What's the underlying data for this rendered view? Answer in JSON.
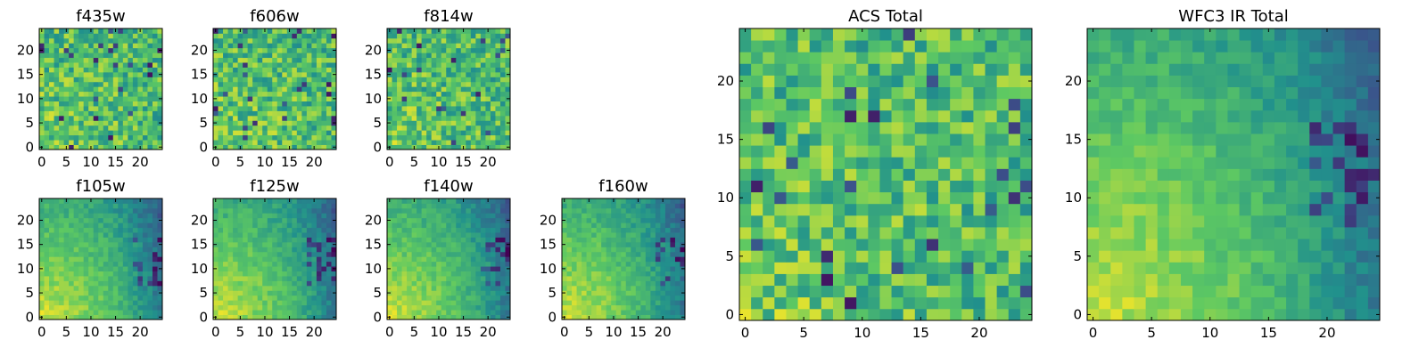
{
  "figure": {
    "colormap": "viridis",
    "colormap_stops": [
      "#440154",
      "#3b528b",
      "#21918c",
      "#5ec962",
      "#fde725"
    ]
  },
  "chart_data": [
    {
      "type": "heatmap",
      "title": "f435w",
      "pattern": "noisy-uniform",
      "grid_size": [
        25,
        25
      ],
      "xlim": [
        -0.5,
        24.5
      ],
      "ylim": [
        -0.5,
        24.5
      ],
      "xticks": [
        0,
        5,
        10,
        15,
        20
      ],
      "yticks": [
        0,
        5,
        10,
        15,
        20
      ],
      "xtick_labels": [
        "0",
        "5",
        "10",
        "15",
        "20"
      ],
      "ytick_labels": [
        "0",
        "5",
        "10",
        "15",
        "20"
      ],
      "value_range": [
        0,
        1
      ]
    },
    {
      "type": "heatmap",
      "title": "f606w",
      "pattern": "noisy-uniform",
      "grid_size": [
        25,
        25
      ],
      "xlim": [
        -0.5,
        24.5
      ],
      "ylim": [
        -0.5,
        24.5
      ],
      "xticks": [
        0,
        5,
        10,
        15,
        20
      ],
      "yticks": [
        0,
        5,
        10,
        15,
        20
      ],
      "xtick_labels": [
        "0",
        "5",
        "10",
        "15",
        "20"
      ],
      "ytick_labels": [
        "0",
        "5",
        "10",
        "15",
        "20"
      ],
      "value_range": [
        0,
        1
      ]
    },
    {
      "type": "heatmap",
      "title": "f814w",
      "pattern": "noisy-uniform",
      "grid_size": [
        25,
        25
      ],
      "xlim": [
        -0.5,
        24.5
      ],
      "ylim": [
        -0.5,
        24.5
      ],
      "xticks": [
        0,
        5,
        10,
        15,
        20
      ],
      "yticks": [
        0,
        5,
        10,
        15,
        20
      ],
      "xtick_labels": [
        "0",
        "5",
        "10",
        "15",
        "20"
      ],
      "ytick_labels": [
        "0",
        "5",
        "10",
        "15",
        "20"
      ],
      "value_range": [
        0,
        1
      ]
    },
    {
      "type": "heatmap",
      "title": "f105w",
      "pattern": "gradient-bright-lower-left-dark-right",
      "grid_size": [
        25,
        25
      ],
      "xlim": [
        -0.5,
        24.5
      ],
      "ylim": [
        -0.5,
        24.5
      ],
      "xticks": [
        0,
        5,
        10,
        15,
        20
      ],
      "yticks": [
        0,
        5,
        10,
        15,
        20
      ],
      "xtick_labels": [
        "0",
        "5",
        "10",
        "15",
        "20"
      ],
      "ytick_labels": [
        "0",
        "5",
        "10",
        "15",
        "20"
      ],
      "value_range": [
        0,
        1
      ]
    },
    {
      "type": "heatmap",
      "title": "f125w",
      "pattern": "gradient-bright-lower-left-dark-right",
      "grid_size": [
        25,
        25
      ],
      "xlim": [
        -0.5,
        24.5
      ],
      "ylim": [
        -0.5,
        24.5
      ],
      "xticks": [
        0,
        5,
        10,
        15,
        20
      ],
      "yticks": [
        0,
        5,
        10,
        15,
        20
      ],
      "xtick_labels": [
        "0",
        "5",
        "10",
        "15",
        "20"
      ],
      "ytick_labels": [
        "0",
        "5",
        "10",
        "15",
        "20"
      ],
      "value_range": [
        0,
        1
      ]
    },
    {
      "type": "heatmap",
      "title": "f140w",
      "pattern": "gradient-bright-lower-left-dark-right",
      "grid_size": [
        25,
        25
      ],
      "xlim": [
        -0.5,
        24.5
      ],
      "ylim": [
        -0.5,
        24.5
      ],
      "xticks": [
        0,
        5,
        10,
        15,
        20
      ],
      "yticks": [
        0,
        5,
        10,
        15,
        20
      ],
      "xtick_labels": [
        "0",
        "5",
        "10",
        "15",
        "20"
      ],
      "ytick_labels": [
        "0",
        "5",
        "10",
        "15",
        "20"
      ],
      "value_range": [
        0,
        1
      ]
    },
    {
      "type": "heatmap",
      "title": "f160w",
      "pattern": "gradient-bright-lower-left-dark-right",
      "grid_size": [
        25,
        25
      ],
      "xlim": [
        -0.5,
        24.5
      ],
      "ylim": [
        -0.5,
        24.5
      ],
      "xticks": [
        0,
        5,
        10,
        15,
        20
      ],
      "yticks": [
        0,
        5,
        10,
        15,
        20
      ],
      "xtick_labels": [
        "0",
        "5",
        "10",
        "15",
        "20"
      ],
      "ytick_labels": [
        "0",
        "5",
        "10",
        "15",
        "20"
      ],
      "value_range": [
        0,
        1
      ]
    },
    {
      "type": "heatmap",
      "title": "ACS Total",
      "pattern": "noisy-uniform",
      "grid_size": [
        25,
        25
      ],
      "xlim": [
        -0.5,
        24.5
      ],
      "ylim": [
        -0.5,
        24.5
      ],
      "xticks": [
        0,
        5,
        10,
        15,
        20
      ],
      "yticks": [
        0,
        5,
        10,
        15,
        20
      ],
      "xtick_labels": [
        "0",
        "5",
        "10",
        "15",
        "20"
      ],
      "ytick_labels": [
        "0",
        "5",
        "10",
        "15",
        "20"
      ],
      "value_range": [
        0,
        1
      ]
    },
    {
      "type": "heatmap",
      "title": "WFC3 IR Total",
      "pattern": "gradient-bright-lower-left-dark-right",
      "grid_size": [
        25,
        25
      ],
      "xlim": [
        -0.5,
        24.5
      ],
      "ylim": [
        -0.5,
        24.5
      ],
      "xticks": [
        0,
        5,
        10,
        15,
        20
      ],
      "yticks": [
        0,
        5,
        10,
        15,
        20
      ],
      "xtick_labels": [
        "0",
        "5",
        "10",
        "15",
        "20"
      ],
      "ytick_labels": [
        "0",
        "5",
        "10",
        "15",
        "20"
      ],
      "value_range": [
        0,
        1
      ]
    }
  ]
}
